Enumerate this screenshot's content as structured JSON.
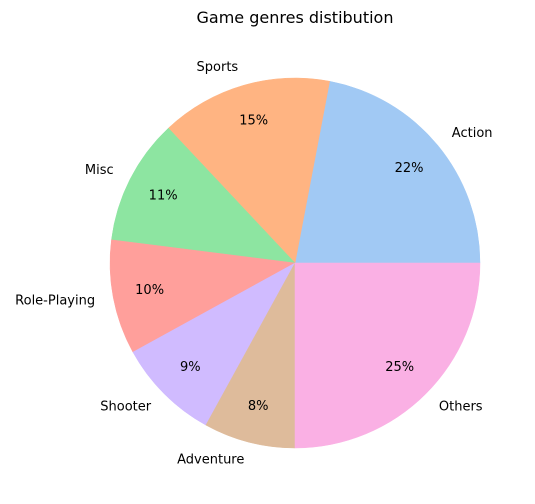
{
  "chart_data": {
    "type": "pie",
    "title": "Game genres distibution",
    "categories": [
      "Action",
      "Sports",
      "Misc",
      "Role-Playing",
      "Shooter",
      "Adventure",
      "Others"
    ],
    "values": [
      22,
      15,
      11,
      10,
      9,
      8,
      25
    ],
    "value_labels": [
      "22%",
      "15%",
      "11%",
      "10%",
      "9%",
      "8%",
      "25%"
    ],
    "colors": [
      "#a1c9f4",
      "#ffb482",
      "#8de5a1",
      "#ff9f9b",
      "#d0bbff",
      "#debb9b",
      "#fab0e4"
    ],
    "start_angle": 0,
    "direction": "counterclockwise"
  }
}
